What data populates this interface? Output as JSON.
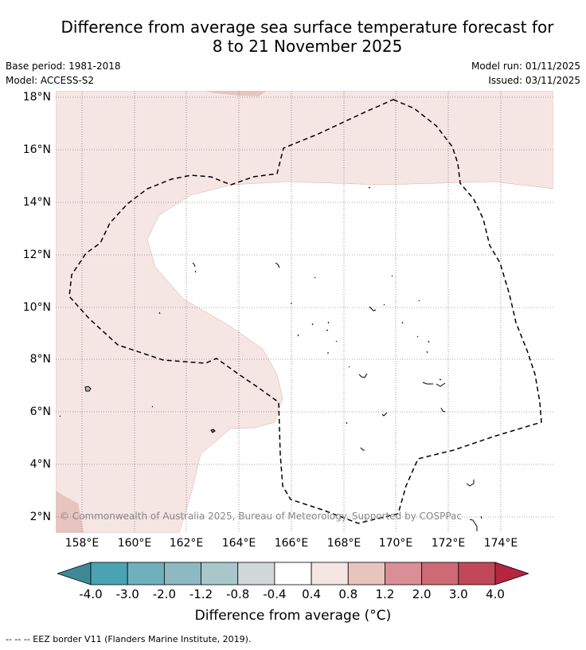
{
  "title": {
    "line1": "Difference from average sea surface temperature forecast for",
    "line2": "8 to 21 November 2025"
  },
  "meta": {
    "base_period": "Base period: 1981-2018",
    "model": "Model: ACCESS-S2",
    "model_run": "Model run: 01/11/2025",
    "issued": "Issued: 03/11/2025"
  },
  "map": {
    "lat_labels": [
      "18°N",
      "16°N",
      "14°N",
      "12°N",
      "10°N",
      "8°N",
      "6°N",
      "4°N",
      "2°N"
    ],
    "lon_labels": [
      "158°E",
      "160°E",
      "162°E",
      "164°E",
      "166°E",
      "168°E",
      "170°E",
      "172°E",
      "174°E"
    ],
    "copyright": "© Commonwealth of Australia 2025, Bureau of Meteorology. Supported by COSPPac",
    "colors": {
      "ocean": "#ffffff",
      "anom_0_4_0_8": "#f5e6e4",
      "anom_0_8_1_2": "#e8c4be",
      "grid": "#555555",
      "eez": "#000000"
    }
  },
  "colorbar": {
    "colors": [
      "#3f8996",
      "#4aa3b4",
      "#6fb0bd",
      "#8db9c3",
      "#a9c7ca",
      "#d2d7d8",
      "#ffffff",
      "#f5e6e4",
      "#e8c4be",
      "#d98f95",
      "#cd6a74",
      "#c14858",
      "#b52540"
    ],
    "ticks": [
      "-4.0",
      "-3.0",
      "-2.0",
      "-1.2",
      "-0.8",
      "-0.4",
      "0.4",
      "0.8",
      "1.2",
      "2.0",
      "3.0",
      "4.0"
    ],
    "label": "Difference from average (°C)"
  },
  "footnote": "--  --  -- EEZ border V11 (Flanders Marine Institute, 2019)."
}
